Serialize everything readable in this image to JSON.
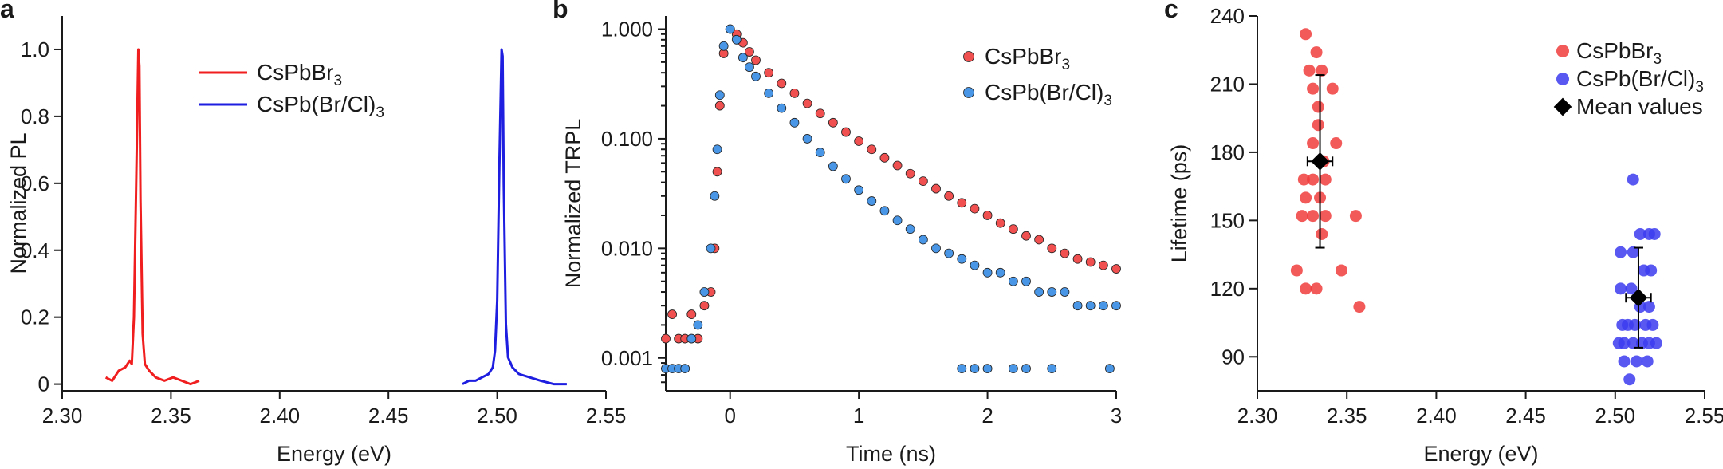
{
  "chart_data": [
    {
      "panel": "a",
      "type": "line",
      "xlabel": "Energy (eV)",
      "ylabel": "Normalized PL",
      "xlim": [
        2.3,
        2.55
      ],
      "ylim": [
        -0.02,
        1.1
      ],
      "xticks": [
        "2.30",
        "2.35",
        "2.40",
        "2.45",
        "2.50",
        "2.55"
      ],
      "yticks": [
        "0",
        "0.2",
        "0.4",
        "0.6",
        "0.8",
        "1.0"
      ],
      "legend_position": "top-center",
      "series": [
        {
          "name_main": "CsPbBr",
          "name_sub": "3",
          "name_tail": "",
          "color": "#f01e1e",
          "x": [
            2.32,
            2.323,
            2.326,
            2.329,
            2.331,
            2.332,
            2.333,
            2.334,
            2.335,
            2.3355,
            2.336,
            2.337,
            2.338,
            2.34,
            2.343,
            2.347,
            2.351,
            2.355,
            2.359,
            2.363
          ],
          "y": [
            0.02,
            0.01,
            0.04,
            0.05,
            0.07,
            0.06,
            0.2,
            0.6,
            1.0,
            0.95,
            0.55,
            0.15,
            0.06,
            0.04,
            0.02,
            0.01,
            0.02,
            0.01,
            0.0,
            0.01
          ]
        },
        {
          "name_main": "CsPb(Br/Cl)",
          "name_sub": "3",
          "name_tail": "",
          "color": "#1e1ee0",
          "x": [
            2.484,
            2.487,
            2.49,
            2.493,
            2.496,
            2.498,
            2.499,
            2.5,
            2.501,
            2.502,
            2.5025,
            2.503,
            2.504,
            2.505,
            2.507,
            2.51,
            2.515,
            2.52,
            2.526,
            2.532
          ],
          "y": [
            0.0,
            0.01,
            0.01,
            0.02,
            0.03,
            0.05,
            0.1,
            0.25,
            0.65,
            1.0,
            0.98,
            0.6,
            0.18,
            0.08,
            0.05,
            0.03,
            0.02,
            0.01,
            0.0,
            0.0
          ]
        }
      ]
    },
    {
      "panel": "b",
      "type": "scatter",
      "xlabel": "Time (ns)",
      "ylabel": "Normalized TRPL",
      "xlim": [
        -0.5,
        3.0
      ],
      "ylim_log10": [
        -3.3,
        0.12
      ],
      "yscale": "log",
      "xticks": [
        "0",
        "1",
        "2",
        "3"
      ],
      "yticks": [
        "1.000",
        "0.100",
        "0.010",
        "0.001"
      ],
      "legend_position": "top-right",
      "series": [
        {
          "name_main": "CsPbBr",
          "name_sub": "3",
          "name_tail": "",
          "color": "#f05050",
          "points": [
            [
              -0.5,
              0.0015
            ],
            [
              -0.45,
              0.0025
            ],
            [
              -0.4,
              0.0015
            ],
            [
              -0.35,
              0.0015
            ],
            [
              -0.3,
              0.0025
            ],
            [
              -0.25,
              0.0015
            ],
            [
              -0.2,
              0.003
            ],
            [
              -0.15,
              0.004
            ],
            [
              -0.12,
              0.01
            ],
            [
              -0.1,
              0.05
            ],
            [
              -0.08,
              0.2
            ],
            [
              -0.05,
              0.6
            ],
            [
              0.0,
              1.0
            ],
            [
              0.05,
              0.9
            ],
            [
              0.1,
              0.75
            ],
            [
              0.15,
              0.62
            ],
            [
              0.2,
              0.52
            ],
            [
              0.3,
              0.4
            ],
            [
              0.4,
              0.32
            ],
            [
              0.5,
              0.26
            ],
            [
              0.6,
              0.21
            ],
            [
              0.7,
              0.17
            ],
            [
              0.8,
              0.14
            ],
            [
              0.9,
              0.115
            ],
            [
              1.0,
              0.095
            ],
            [
              1.1,
              0.08
            ],
            [
              1.2,
              0.067
            ],
            [
              1.3,
              0.057
            ],
            [
              1.4,
              0.048
            ],
            [
              1.5,
              0.041
            ],
            [
              1.6,
              0.035
            ],
            [
              1.7,
              0.03
            ],
            [
              1.8,
              0.026
            ],
            [
              1.9,
              0.023
            ],
            [
              2.0,
              0.02
            ],
            [
              2.1,
              0.017
            ],
            [
              2.2,
              0.015
            ],
            [
              2.3,
              0.013
            ],
            [
              2.4,
              0.012
            ],
            [
              2.5,
              0.01
            ],
            [
              2.6,
              0.009
            ],
            [
              2.7,
              0.008
            ],
            [
              2.8,
              0.0075
            ],
            [
              2.9,
              0.007
            ],
            [
              3.0,
              0.0065
            ]
          ]
        },
        {
          "name_main": "CsPb(Br/Cl)",
          "name_sub": "3",
          "name_tail": "",
          "color": "#4a96e6",
          "points": [
            [
              -0.5,
              0.0008
            ],
            [
              -0.45,
              0.0008
            ],
            [
              -0.4,
              0.0008
            ],
            [
              -0.35,
              0.0008
            ],
            [
              -0.3,
              0.0015
            ],
            [
              -0.25,
              0.002
            ],
            [
              -0.2,
              0.004
            ],
            [
              -0.15,
              0.01
            ],
            [
              -0.12,
              0.03
            ],
            [
              -0.1,
              0.08
            ],
            [
              -0.08,
              0.25
            ],
            [
              -0.05,
              0.7
            ],
            [
              0.0,
              1.0
            ],
            [
              0.05,
              0.8
            ],
            [
              0.1,
              0.55
            ],
            [
              0.15,
              0.45
            ],
            [
              0.2,
              0.37
            ],
            [
              0.3,
              0.26
            ],
            [
              0.4,
              0.19
            ],
            [
              0.5,
              0.14
            ],
            [
              0.6,
              0.1
            ],
            [
              0.7,
              0.075
            ],
            [
              0.8,
              0.056
            ],
            [
              0.9,
              0.043
            ],
            [
              1.0,
              0.034
            ],
            [
              1.1,
              0.027
            ],
            [
              1.2,
              0.022
            ],
            [
              1.3,
              0.018
            ],
            [
              1.4,
              0.015
            ],
            [
              1.5,
              0.012
            ],
            [
              1.6,
              0.01
            ],
            [
              1.7,
              0.009
            ],
            [
              1.8,
              0.008
            ],
            [
              1.9,
              0.007
            ],
            [
              2.0,
              0.006
            ],
            [
              2.1,
              0.006
            ],
            [
              2.2,
              0.005
            ],
            [
              2.3,
              0.005
            ],
            [
              2.4,
              0.004
            ],
            [
              2.5,
              0.004
            ],
            [
              2.6,
              0.004
            ],
            [
              2.7,
              0.003
            ],
            [
              2.8,
              0.003
            ],
            [
              2.9,
              0.003
            ],
            [
              3.0,
              0.003
            ],
            [
              1.8,
              0.0008
            ],
            [
              1.9,
              0.0008
            ],
            [
              2.0,
              0.0008
            ],
            [
              2.2,
              0.0008
            ],
            [
              2.3,
              0.0008
            ],
            [
              2.5,
              0.0008
            ],
            [
              2.95,
              0.0008
            ]
          ]
        }
      ]
    },
    {
      "panel": "c",
      "type": "scatter",
      "xlabel": "Energy (eV)",
      "ylabel": "Lifetime (ps)",
      "xlim": [
        2.3,
        2.55
      ],
      "ylim": [
        75,
        240
      ],
      "xticks": [
        "2.30",
        "2.35",
        "2.40",
        "2.45",
        "2.50",
        "2.55"
      ],
      "yticks": [
        "90",
        "120",
        "150",
        "180",
        "210",
        "240"
      ],
      "legend_position": "top-right",
      "series": [
        {
          "name_main": "CsPbBr",
          "name_sub": "3",
          "name_tail": "",
          "color": "#f03c3c",
          "points": [
            [
              2.327,
              232
            ],
            [
              2.333,
              224
            ],
            [
              2.329,
              216
            ],
            [
              2.336,
              216
            ],
            [
              2.331,
              208
            ],
            [
              2.342,
              208
            ],
            [
              2.334,
              200
            ],
            [
              2.334,
              192
            ],
            [
              2.344,
              184
            ],
            [
              2.331,
              184
            ],
            [
              2.337,
              176
            ],
            [
              2.326,
              168
            ],
            [
              2.331,
              168
            ],
            [
              2.338,
              168
            ],
            [
              2.327,
              160
            ],
            [
              2.335,
              160
            ],
            [
              2.325,
              152
            ],
            [
              2.331,
              152
            ],
            [
              2.338,
              152
            ],
            [
              2.355,
              152
            ],
            [
              2.336,
              144
            ],
            [
              2.322,
              128
            ],
            [
              2.347,
              128
            ],
            [
              2.327,
              120
            ],
            [
              2.333,
              120
            ],
            [
              2.357,
              112
            ]
          ]
        },
        {
          "name_main": "CsPb(Br/Cl)",
          "name_sub": "3",
          "name_tail": "",
          "color": "#3c3cf0",
          "points": [
            [
              2.51,
              168
            ],
            [
              2.514,
              144
            ],
            [
              2.519,
              144
            ],
            [
              2.522,
              144
            ],
            [
              2.503,
              136
            ],
            [
              2.51,
              136
            ],
            [
              2.516,
              128
            ],
            [
              2.52,
              128
            ],
            [
              2.503,
              120
            ],
            [
              2.509,
              120
            ],
            [
              2.514,
              112
            ],
            [
              2.519,
              112
            ],
            [
              2.504,
              104
            ],
            [
              2.507,
              104
            ],
            [
              2.511,
              104
            ],
            [
              2.517,
              104
            ],
            [
              2.521,
              104
            ],
            [
              2.502,
              96
            ],
            [
              2.505,
              96
            ],
            [
              2.51,
              96
            ],
            [
              2.515,
              96
            ],
            [
              2.519,
              96
            ],
            [
              2.523,
              96
            ],
            [
              2.505,
              88
            ],
            [
              2.512,
              88
            ],
            [
              2.518,
              88
            ],
            [
              2.508,
              80
            ]
          ]
        },
        {
          "name_main": "Mean values",
          "name_sub": "",
          "name_tail": "",
          "color": "#000000",
          "points": [
            [
              2.335,
              176,
              38,
              0.007
            ],
            [
              2.513,
              116,
              22,
              0.007
            ]
          ]
        }
      ]
    }
  ]
}
